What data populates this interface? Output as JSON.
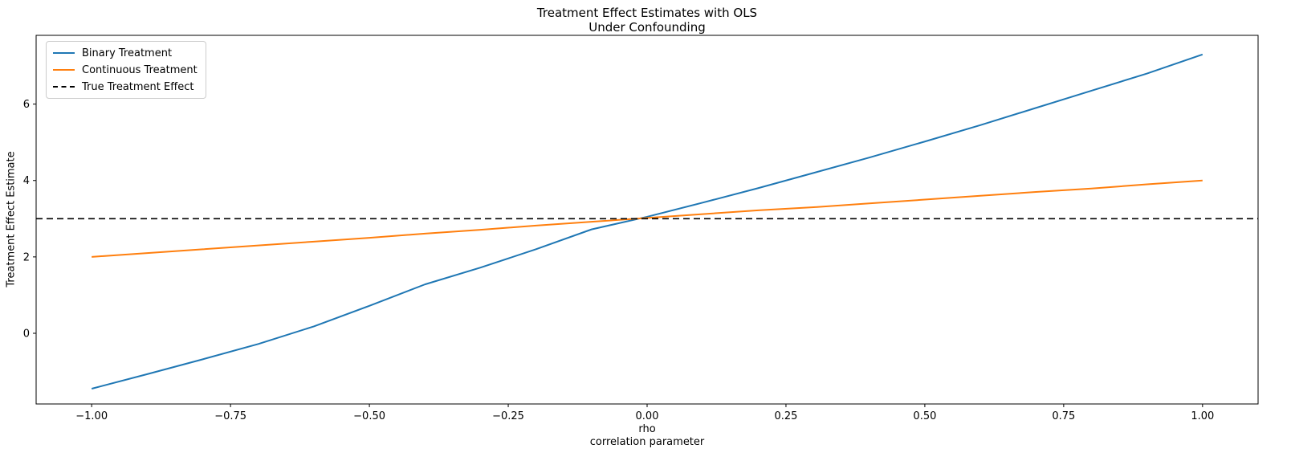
{
  "chart_data": {
    "type": "line",
    "title_line1": "Treatment Effect Estimates with OLS",
    "title_line2": "Under Confounding",
    "xlabel_line1": "rho",
    "xlabel_line2": "correlation parameter",
    "ylabel": "Treatment Effect Estimate",
    "xlim": [
      -1.1,
      1.1
    ],
    "ylim": [
      -1.85,
      7.8
    ],
    "grid": false,
    "legend_position": "upper left",
    "background": "#ffffff",
    "x_ticks": [
      {
        "value": -1.0,
        "label": "−1.00"
      },
      {
        "value": -0.75,
        "label": "−0.75"
      },
      {
        "value": -0.5,
        "label": "−0.50"
      },
      {
        "value": -0.25,
        "label": "−0.25"
      },
      {
        "value": 0.0,
        "label": "0.00"
      },
      {
        "value": 0.25,
        "label": "0.25"
      },
      {
        "value": 0.5,
        "label": "0.50"
      },
      {
        "value": 0.75,
        "label": "0.75"
      },
      {
        "value": 1.0,
        "label": "1.00"
      }
    ],
    "y_ticks": [
      {
        "value": 0,
        "label": "0"
      },
      {
        "value": 2,
        "label": "2"
      },
      {
        "value": 4,
        "label": "4"
      },
      {
        "value": 6,
        "label": "6"
      }
    ],
    "x": [
      -1.0,
      -0.9,
      -0.8,
      -0.7,
      -0.6,
      -0.5,
      -0.4,
      -0.3,
      -0.2,
      -0.1,
      0.0,
      0.1,
      0.2,
      0.3,
      0.4,
      0.5,
      0.6,
      0.7,
      0.8,
      0.9,
      1.0
    ],
    "series": [
      {
        "name": "Binary Treatment",
        "color": "#1f77b4",
        "dash": null,
        "values": [
          -1.45,
          -1.07,
          -0.68,
          -0.28,
          0.18,
          0.72,
          1.28,
          1.72,
          2.2,
          2.72,
          3.05,
          3.42,
          3.8,
          4.2,
          4.6,
          5.02,
          5.45,
          5.9,
          6.35,
          6.8,
          7.3
        ]
      },
      {
        "name": "Continuous Treatment",
        "color": "#ff7f0e",
        "dash": null,
        "values": [
          2.0,
          2.1,
          2.2,
          2.3,
          2.4,
          2.5,
          2.61,
          2.71,
          2.82,
          2.92,
          3.02,
          3.12,
          3.22,
          3.3,
          3.4,
          3.5,
          3.6,
          3.7,
          3.79,
          3.9,
          4.0
        ]
      },
      {
        "name": "True Treatment Effect",
        "color": "#000000",
        "dash": [
          8,
          5
        ],
        "constant": 3,
        "values": null
      }
    ]
  }
}
